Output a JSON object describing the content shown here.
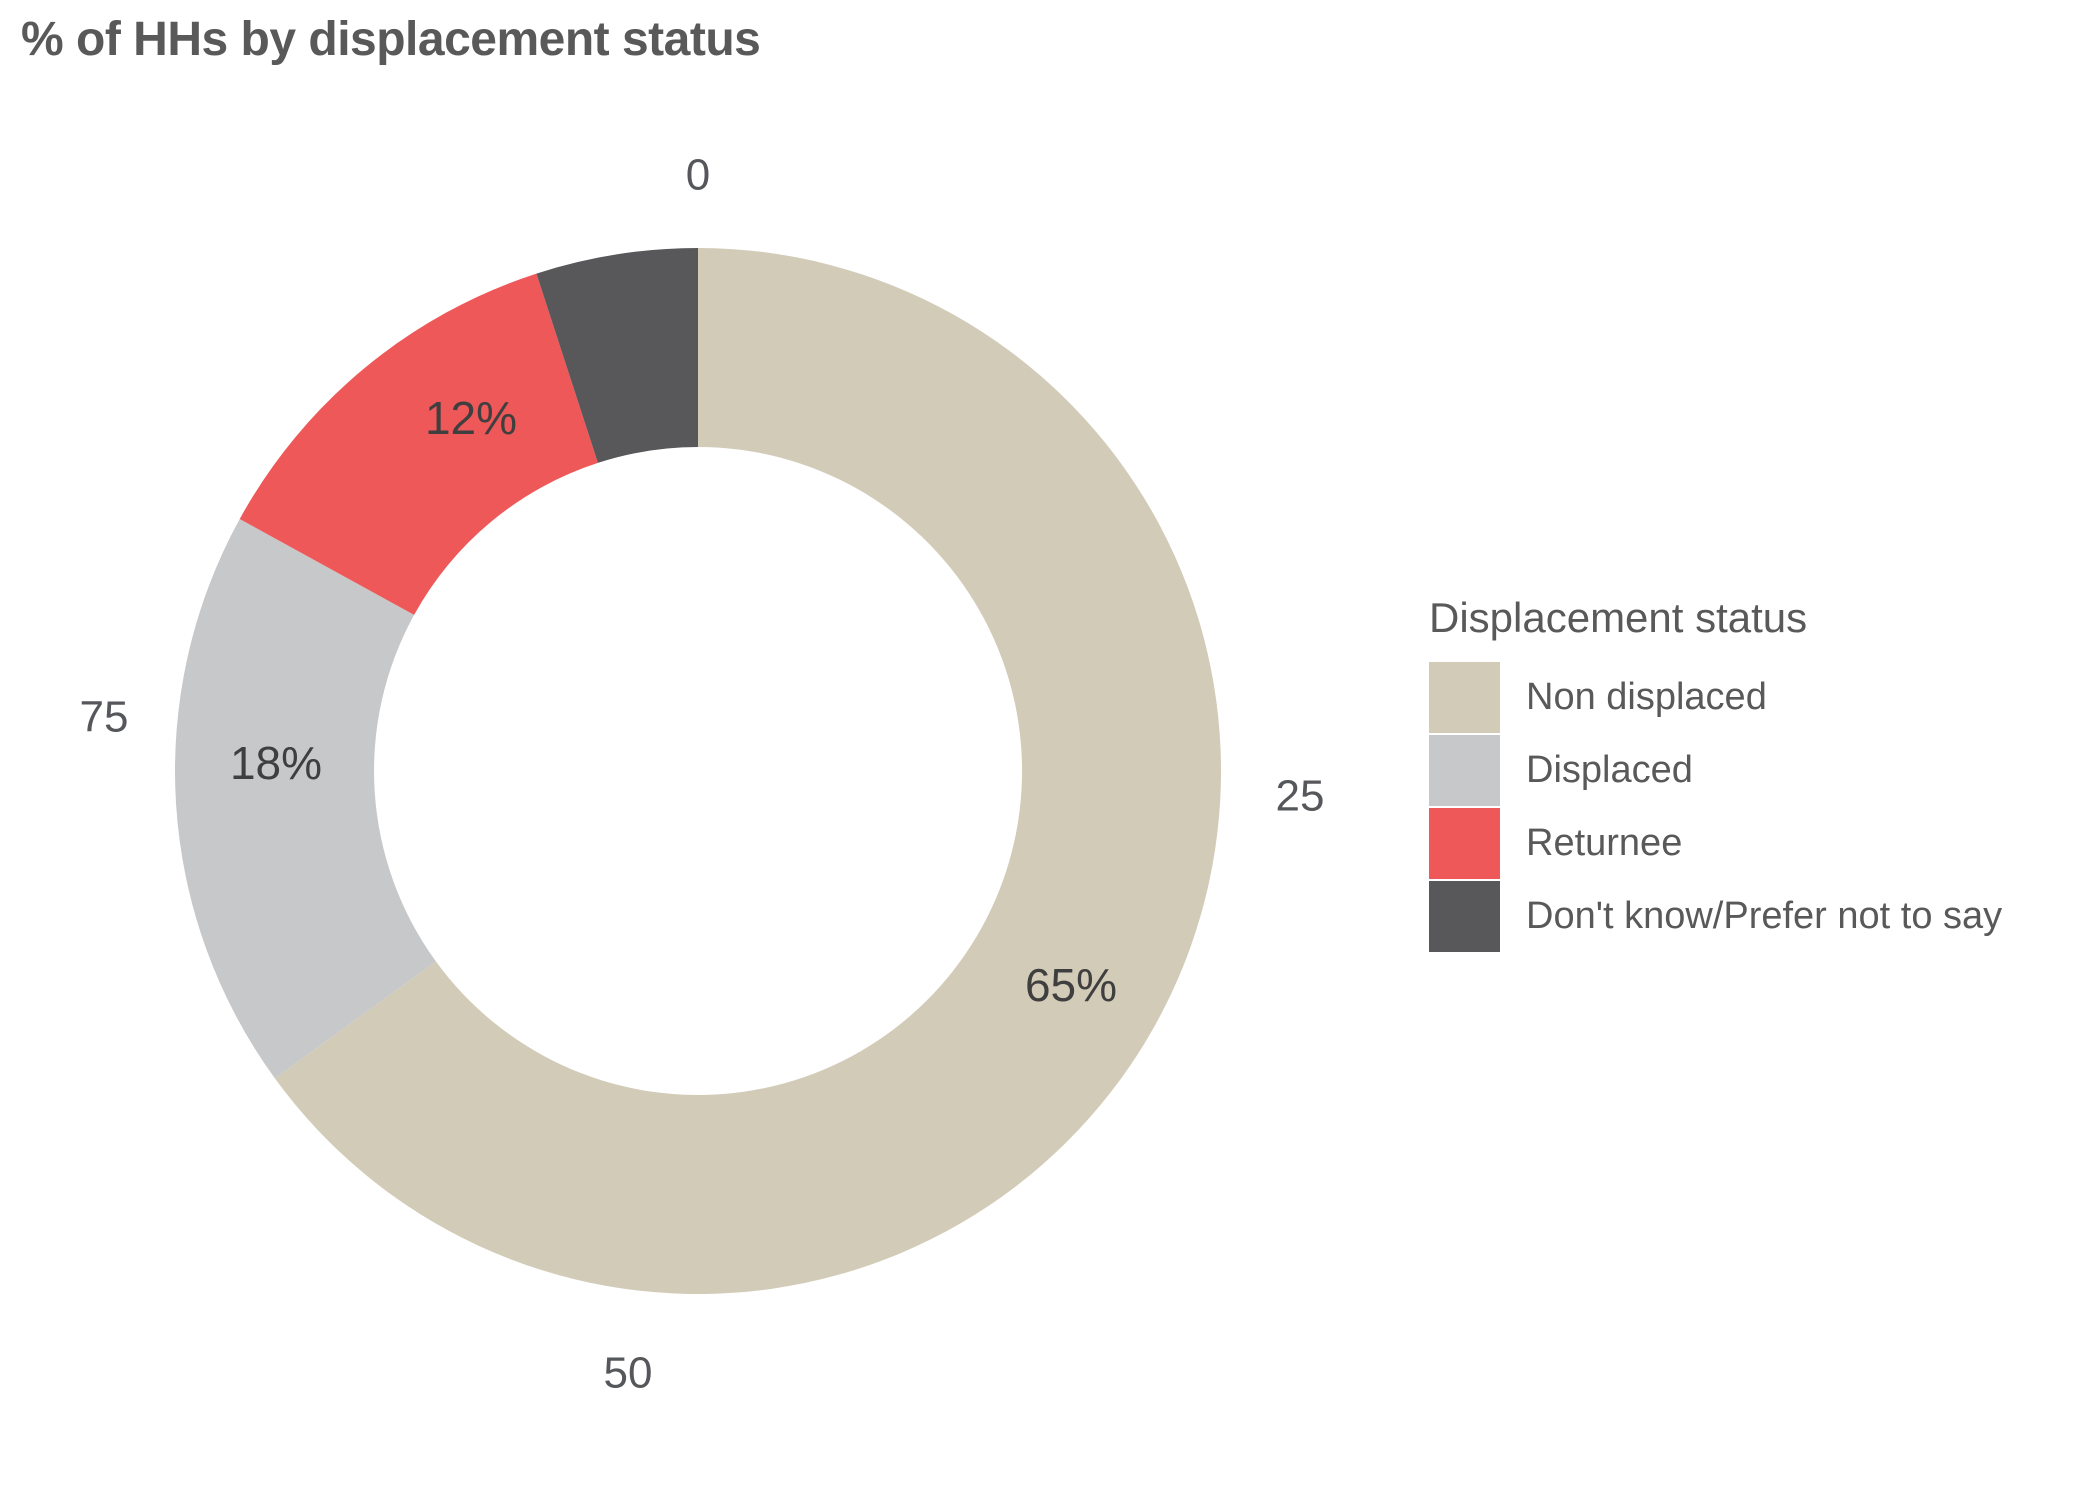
{
  "title": "% of HHs by displacement status",
  "chart_data": {
    "type": "pie",
    "subtype": "donut",
    "title": "% of HHs by displacement status",
    "legend_title": "Displacement status",
    "legend_position": "right",
    "categories": [
      "Non displaced",
      "Displaced",
      "Returnee",
      "Don't know/Prefer not to say"
    ],
    "values": [
      65,
      18,
      12,
      5
    ],
    "slice_labels": [
      "65%",
      "18%",
      "12%",
      ""
    ],
    "colors": [
      "#D2CBB8",
      "#C7C8CA",
      "#EE5859",
      "#58585A"
    ],
    "unit": "%",
    "scale_ticks": [
      "0",
      "25",
      "50",
      "75"
    ],
    "tick_values": [
      0,
      25,
      50,
      75
    ],
    "total": 100,
    "start_angle_deg": 0,
    "direction": "clockwise",
    "donut_hole_ratio": 0.62,
    "grid": false,
    "style": {
      "title_color": "#595959",
      "tick_color": "#55575b",
      "slice_label_color": "#3f3f3f",
      "legend_text_color": "#595959",
      "background": "#ffffff"
    }
  }
}
